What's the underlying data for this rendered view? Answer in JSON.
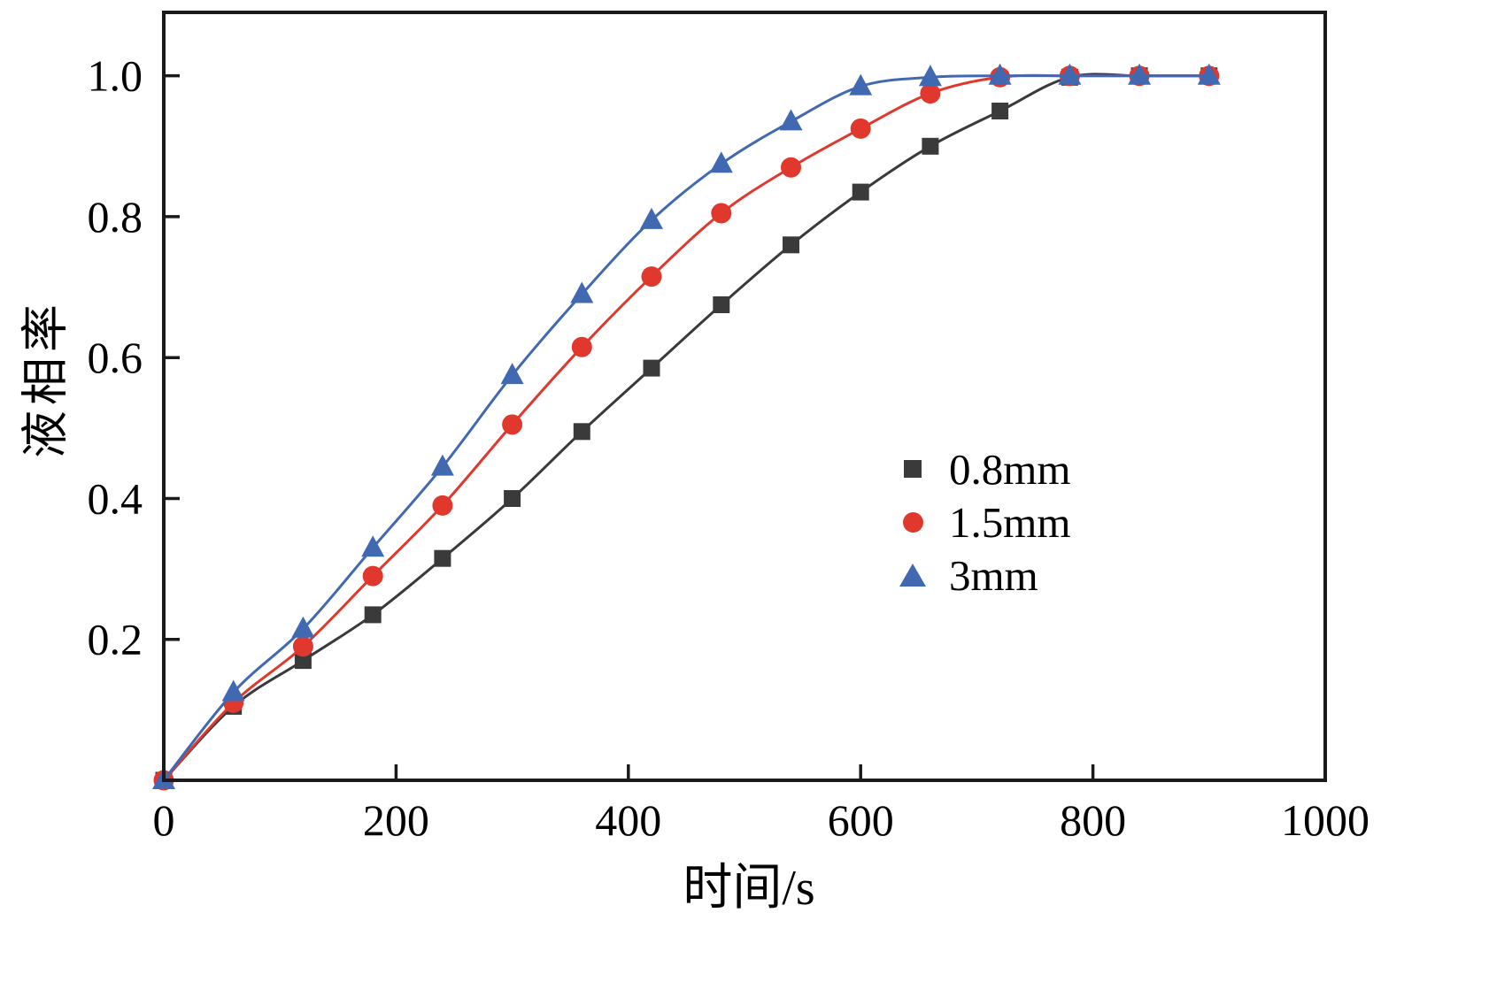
{
  "chart_data": {
    "type": "line",
    "title": "",
    "xlabel": "时间/s",
    "ylabel": "液相率",
    "xlim": [
      0,
      1000
    ],
    "ylim": [
      0,
      1.09
    ],
    "xticks": [
      0,
      200,
      400,
      600,
      800,
      1000
    ],
    "yticks": [
      0.2,
      0.4,
      0.6,
      0.8,
      1.0
    ],
    "grid": false,
    "axis_color": "#1a1a1a",
    "legend_position": "center-right",
    "x": [
      0,
      60,
      120,
      180,
      240,
      300,
      360,
      420,
      480,
      540,
      600,
      660,
      720,
      780,
      840,
      900
    ],
    "series": [
      {
        "name": "0.8mm",
        "marker": "square",
        "color": "#3a3a3a",
        "values": [
          0,
          0.105,
          0.17,
          0.235,
          0.315,
          0.4,
          0.495,
          0.585,
          0.675,
          0.76,
          0.835,
          0.9,
          0.95,
          0.998,
          1.0,
          1.0
        ]
      },
      {
        "name": "1.5mm",
        "marker": "circle",
        "color": "#e0382d",
        "values": [
          0,
          0.11,
          0.19,
          0.29,
          0.39,
          0.505,
          0.615,
          0.715,
          0.805,
          0.87,
          0.925,
          0.975,
          0.998,
          1.0,
          1.0,
          1.0
        ]
      },
      {
        "name": "3mm",
        "marker": "triangle",
        "color": "#4169b2",
        "values": [
          0,
          0.125,
          0.215,
          0.33,
          0.445,
          0.575,
          0.69,
          0.795,
          0.875,
          0.935,
          0.985,
          0.998,
          1.0,
          1.0,
          1.0,
          1.0
        ]
      }
    ]
  }
}
